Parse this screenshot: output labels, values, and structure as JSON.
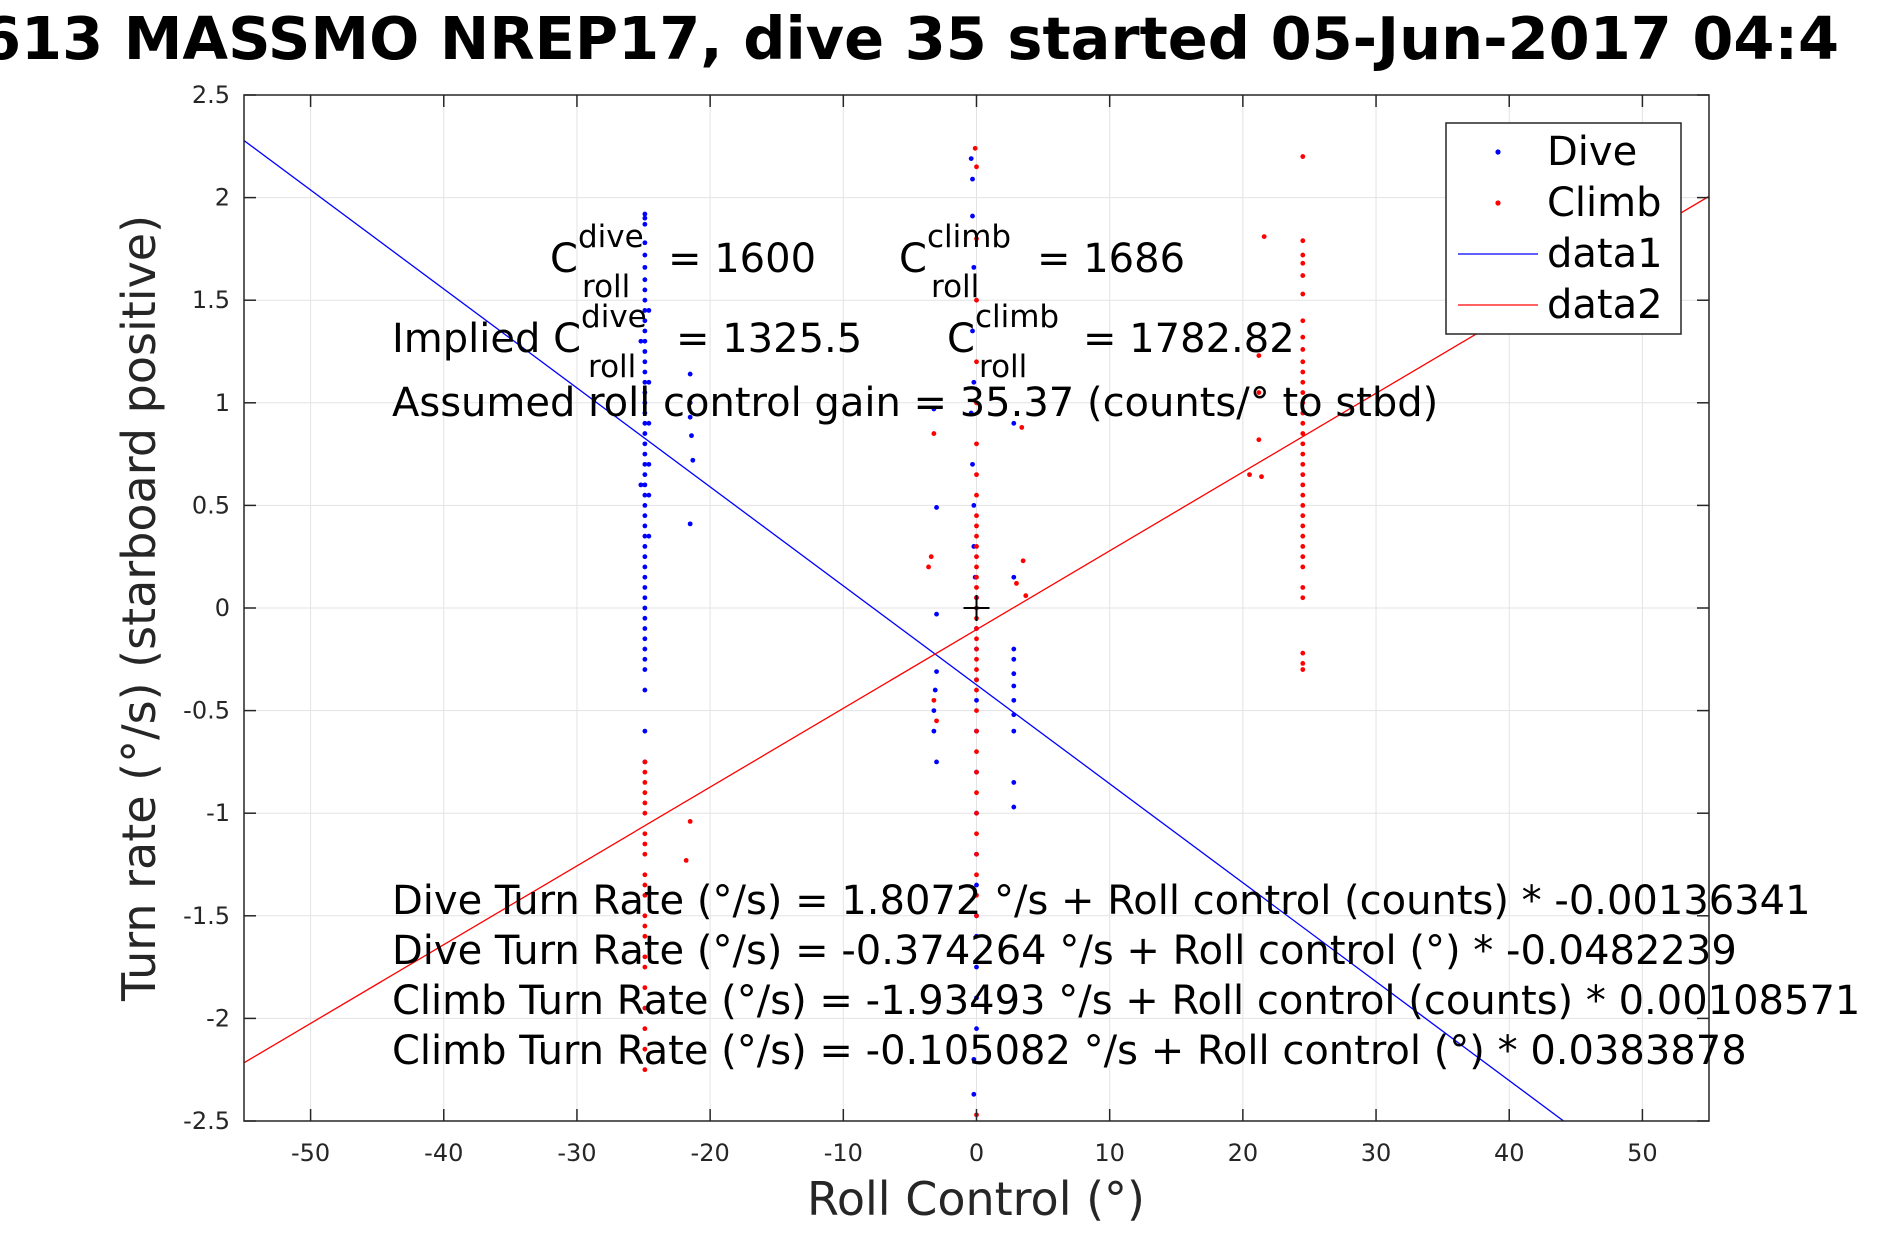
{
  "chart_data": {
    "type": "scatter",
    "title": "613 MASSMO NREP17, dive 35 started 05-Jun-2017 04:4",
    "xlabel": "Roll Control (°)",
    "ylabel": "Turn rate (°/s) (starboard positive)",
    "xlim": [
      -55,
      55
    ],
    "ylim": [
      -2.5,
      2.5
    ],
    "xticks": [
      -50,
      -40,
      -30,
      -20,
      -10,
      0,
      10,
      20,
      30,
      40,
      50
    ],
    "yticks": [
      -2.5,
      -2,
      -1.5,
      -1,
      -0.5,
      0,
      0.5,
      1,
      1.5,
      2,
      2.5
    ],
    "xtick_labels": [
      "-50",
      "-40",
      "-30",
      "-20",
      "-10",
      "0",
      "10",
      "20",
      "30",
      "40",
      "50"
    ],
    "ytick_labels": [
      "-2.5",
      "-2",
      "-1.5",
      "-1",
      "-0.5",
      "0",
      "0.5",
      "1",
      "1.5",
      "2",
      "2.5"
    ],
    "grid": true,
    "legend_position": "top-right",
    "series": [
      {
        "name": "Dive",
        "kind": "points",
        "color": "#0000ff",
        "points": [
          [
            -24.9,
            1.92
          ],
          [
            -24.9,
            1.9
          ],
          [
            -24.9,
            1.87
          ],
          [
            -24.9,
            1.78
          ],
          [
            -24.9,
            1.72
          ],
          [
            -24.9,
            1.66
          ],
          [
            -24.9,
            1.6
          ],
          [
            -24.9,
            1.55
          ],
          [
            -24.9,
            1.5
          ],
          [
            -24.9,
            1.45
          ],
          [
            -24.9,
            1.4
          ],
          [
            -24.9,
            1.35
          ],
          [
            -24.9,
            1.3
          ],
          [
            -24.9,
            1.25
          ],
          [
            -24.9,
            1.2
          ],
          [
            -24.9,
            1.15
          ],
          [
            -24.9,
            1.1
          ],
          [
            -24.9,
            1.05
          ],
          [
            -24.9,
            1.0
          ],
          [
            -24.9,
            0.95
          ],
          [
            -24.9,
            0.9
          ],
          [
            -24.9,
            0.85
          ],
          [
            -24.9,
            0.8
          ],
          [
            -24.9,
            0.75
          ],
          [
            -24.9,
            0.7
          ],
          [
            -24.9,
            0.65
          ],
          [
            -24.9,
            0.6
          ],
          [
            -24.9,
            0.55
          ],
          [
            -24.9,
            0.5
          ],
          [
            -24.9,
            0.45
          ],
          [
            -24.9,
            0.4
          ],
          [
            -24.9,
            0.35
          ],
          [
            -24.9,
            0.3
          ],
          [
            -24.9,
            0.25
          ],
          [
            -24.9,
            0.2
          ],
          [
            -24.9,
            0.15
          ],
          [
            -24.9,
            0.1
          ],
          [
            -24.9,
            0.05
          ],
          [
            -24.9,
            0.0
          ],
          [
            -24.9,
            -0.05
          ],
          [
            -24.9,
            -0.1
          ],
          [
            -24.9,
            -0.15
          ],
          [
            -24.9,
            -0.2
          ],
          [
            -24.9,
            -0.25
          ],
          [
            -24.9,
            -0.3
          ],
          [
            -24.9,
            -0.4
          ],
          [
            -24.9,
            -0.6
          ],
          [
            -24.9,
            -0.75
          ],
          [
            -24.6,
            1.45
          ],
          [
            -24.6,
            1.1
          ],
          [
            -24.6,
            0.9
          ],
          [
            -24.6,
            0.7
          ],
          [
            -24.6,
            0.55
          ],
          [
            -24.6,
            0.35
          ],
          [
            -25.2,
            0.6
          ],
          [
            -25.2,
            1.3
          ],
          [
            -21.5,
            1.14
          ],
          [
            -21.5,
            1.0
          ],
          [
            -21.5,
            0.93
          ],
          [
            -21.4,
            0.84
          ],
          [
            -21.3,
            0.72
          ],
          [
            -21.5,
            0.41
          ],
          [
            -3.2,
            0.97
          ],
          [
            -3.0,
            0.49
          ],
          [
            -3.0,
            -0.03
          ],
          [
            -3.0,
            -0.31
          ],
          [
            -3.1,
            -0.4
          ],
          [
            -3.2,
            -0.5
          ],
          [
            -3.2,
            -0.6
          ],
          [
            -3.0,
            -0.75
          ],
          [
            -0.4,
            2.19
          ],
          [
            -0.3,
            2.09
          ],
          [
            -0.3,
            1.91
          ],
          [
            -0.2,
            1.66
          ],
          [
            -0.3,
            1.35
          ],
          [
            -0.2,
            1.1
          ],
          [
            -0.4,
            0.95
          ],
          [
            -0.3,
            0.7
          ],
          [
            -0.2,
            0.5
          ],
          [
            -0.2,
            0.3
          ],
          [
            -0.1,
            0.15
          ],
          [
            0.0,
            0.05
          ],
          [
            0.0,
            -0.1
          ],
          [
            0.0,
            -0.2
          ],
          [
            0.0,
            -0.35
          ],
          [
            0.0,
            -0.45
          ],
          [
            0.0,
            -0.6
          ],
          [
            0.0,
            -0.8
          ],
          [
            0.0,
            -1.0
          ],
          [
            0.0,
            -1.2
          ],
          [
            0.0,
            -1.35
          ],
          [
            0.0,
            -1.5
          ],
          [
            0.0,
            -1.6
          ],
          [
            0.0,
            -1.75
          ],
          [
            0.0,
            -1.9
          ],
          [
            0.0,
            -2.05
          ],
          [
            -0.2,
            -2.2
          ],
          [
            -0.2,
            -2.37
          ],
          [
            2.8,
            0.9
          ],
          [
            2.8,
            0.15
          ],
          [
            2.8,
            -0.2
          ],
          [
            2.8,
            -0.25
          ],
          [
            2.8,
            -0.32
          ],
          [
            2.8,
            -0.38
          ],
          [
            2.8,
            -0.45
          ],
          [
            2.8,
            -0.52
          ],
          [
            2.8,
            -0.6
          ],
          [
            2.8,
            -0.85
          ],
          [
            2.8,
            -0.97
          ]
        ]
      },
      {
        "name": "Climb",
        "kind": "points",
        "color": "#ff0000",
        "points": [
          [
            -24.9,
            -0.75
          ],
          [
            -24.9,
            -0.8
          ],
          [
            -24.9,
            -0.85
          ],
          [
            -24.9,
            -0.9
          ],
          [
            -24.9,
            -0.95
          ],
          [
            -24.9,
            -1.0
          ],
          [
            -24.9,
            -1.1
          ],
          [
            -24.9,
            -1.15
          ],
          [
            -24.9,
            -1.2
          ],
          [
            -24.9,
            -1.3
          ],
          [
            -24.9,
            -1.35
          ],
          [
            -24.9,
            -1.4
          ],
          [
            -24.9,
            -1.5
          ],
          [
            -24.9,
            -1.55
          ],
          [
            -24.9,
            -1.6
          ],
          [
            -24.9,
            -1.7
          ],
          [
            -24.9,
            -1.75
          ],
          [
            -24.9,
            -1.85
          ],
          [
            -24.9,
            -1.95
          ],
          [
            -24.9,
            -2.05
          ],
          [
            -24.9,
            -2.15
          ],
          [
            -24.9,
            -2.25
          ],
          [
            -21.5,
            -1.04
          ],
          [
            -21.8,
            -1.23
          ],
          [
            -3.6,
            0.2
          ],
          [
            -3.4,
            0.25
          ],
          [
            -3.2,
            0.85
          ],
          [
            -3.2,
            -0.45
          ],
          [
            -3.0,
            -0.55
          ],
          [
            -0.1,
            2.24
          ],
          [
            0.0,
            2.15
          ],
          [
            0.0,
            1.8
          ],
          [
            0.0,
            1.5
          ],
          [
            0.0,
            1.2
          ],
          [
            0.0,
            1.0
          ],
          [
            0.0,
            0.8
          ],
          [
            0.0,
            0.65
          ],
          [
            0.0,
            0.55
          ],
          [
            0.0,
            0.45
          ],
          [
            0.0,
            0.4
          ],
          [
            0.0,
            0.35
          ],
          [
            0.0,
            0.3
          ],
          [
            0.0,
            0.25
          ],
          [
            0.0,
            0.2
          ],
          [
            0.0,
            0.15
          ],
          [
            0.0,
            0.1
          ],
          [
            0.0,
            0.05
          ],
          [
            0.0,
            0.0
          ],
          [
            0.0,
            -0.05
          ],
          [
            0.0,
            -0.1
          ],
          [
            0.0,
            -0.15
          ],
          [
            0.0,
            -0.2
          ],
          [
            0.0,
            -0.25
          ],
          [
            0.0,
            -0.3
          ],
          [
            0.0,
            -0.35
          ],
          [
            0.0,
            -0.4
          ],
          [
            0.0,
            -0.5
          ],
          [
            0.0,
            -0.6
          ],
          [
            0.0,
            -0.7
          ],
          [
            0.0,
            -0.8
          ],
          [
            0.0,
            -0.9
          ],
          [
            0.0,
            -1.0
          ],
          [
            0.0,
            -1.1
          ],
          [
            0.0,
            -1.2
          ],
          [
            0.0,
            -1.3
          ],
          [
            0.0,
            -1.4
          ],
          [
            0.0,
            -1.5
          ],
          [
            0.0,
            -2.47
          ],
          [
            3.4,
            0.88
          ],
          [
            3.5,
            0.23
          ],
          [
            3.7,
            0.06
          ],
          [
            3.0,
            0.12
          ],
          [
            20.5,
            0.65
          ],
          [
            21.4,
            0.64
          ],
          [
            21.6,
            1.81
          ],
          [
            21.2,
            1.23
          ],
          [
            21.2,
            1.05
          ],
          [
            21.2,
            0.82
          ],
          [
            24.5,
            2.2
          ],
          [
            24.5,
            1.79
          ],
          [
            24.5,
            1.72
          ],
          [
            24.5,
            1.68
          ],
          [
            24.5,
            1.62
          ],
          [
            24.5,
            1.53
          ],
          [
            24.5,
            1.4
          ],
          [
            24.5,
            1.32
          ],
          [
            24.5,
            1.26
          ],
          [
            24.5,
            1.2
          ],
          [
            24.5,
            1.15
          ],
          [
            24.5,
            1.1
          ],
          [
            24.5,
            1.05
          ],
          [
            24.5,
            1.0
          ],
          [
            24.5,
            0.95
          ],
          [
            24.5,
            0.9
          ],
          [
            24.5,
            0.85
          ],
          [
            24.5,
            0.8
          ],
          [
            24.5,
            0.75
          ],
          [
            24.5,
            0.7
          ],
          [
            24.5,
            0.65
          ],
          [
            24.5,
            0.6
          ],
          [
            24.5,
            0.55
          ],
          [
            24.5,
            0.5
          ],
          [
            24.5,
            0.45
          ],
          [
            24.5,
            0.4
          ],
          [
            24.5,
            0.35
          ],
          [
            24.5,
            0.3
          ],
          [
            24.5,
            0.25
          ],
          [
            24.5,
            0.2
          ],
          [
            24.5,
            0.1
          ],
          [
            24.5,
            0.05
          ],
          [
            24.5,
            -0.22
          ],
          [
            24.5,
            -0.27
          ],
          [
            24.5,
            -0.3
          ]
        ]
      },
      {
        "name": "data1",
        "kind": "line",
        "color": "#0000ff",
        "intercept": -0.374264,
        "slope": -0.0482239
      },
      {
        "name": "data2",
        "kind": "line",
        "color": "#ff0000",
        "intercept": -0.105082,
        "slope": 0.0383878
      }
    ],
    "marker_origin": [
      0,
      0
    ],
    "annotations": {
      "c_dive_prefix": "C",
      "c_dive_sup": "dive",
      "c_dive_sub": "roll",
      "c_dive_value": "= 1600",
      "c_climb_prefix": "C",
      "c_climb_sup": "climb",
      "c_climb_sub": "roll",
      "c_climb_value": "= 1686",
      "implied_prefix": "Implied C",
      "implied_dive_sup": "dive",
      "implied_dive_sub": "roll",
      "implied_dive_value": "= 1325.5",
      "implied_climb_prefix": "C",
      "implied_climb_sup": "climb",
      "implied_climb_sub": "roll",
      "implied_climb_value": "= 1782.82",
      "gain": "Assumed roll control gain = 35.37 (counts/° to stbd)",
      "eq1": "Dive Turn Rate (°/s) = 1.8072 °/s + Roll control (counts) * -0.00136341",
      "eq2": "Dive Turn Rate (°/s) = -0.374264 °/s + Roll control (°) * -0.0482239",
      "eq3": "Climb Turn Rate (°/s) = -1.93493 °/s + Roll control (counts) * 0.00108571",
      "eq4": "Climb Turn Rate (°/s) = -0.105082 °/s + Roll control (°) * 0.0383878"
    }
  }
}
